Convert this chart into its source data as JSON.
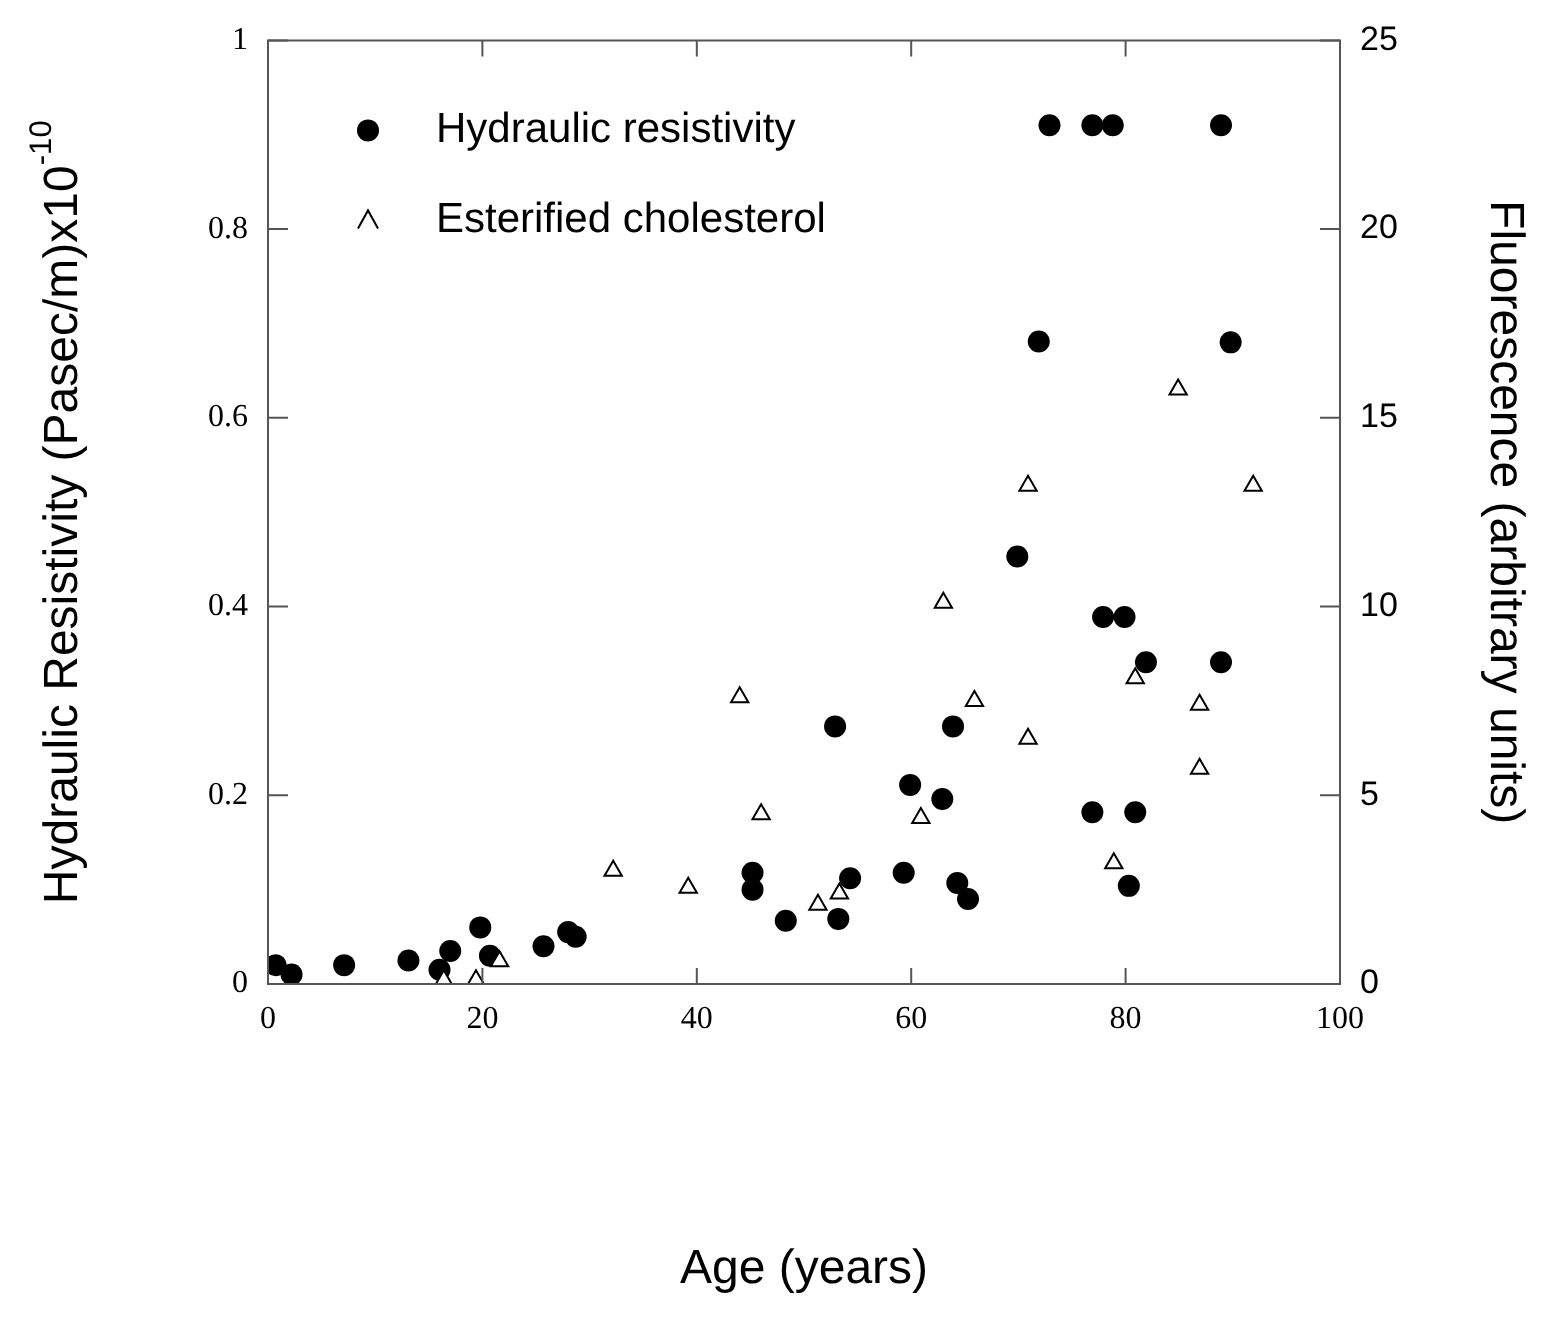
{
  "chart_data": {
    "type": "scatter",
    "xlabel": "Age (years)",
    "ylabel": "Hydraulic Resistivity (Pasec/m)x10$^{-10}$",
    "y2label": "Fluorescence (arbitrary units)",
    "xlim": [
      0,
      100
    ],
    "xticks": [
      0,
      20,
      40,
      60,
      80,
      100
    ],
    "ylim": [
      0,
      1
    ],
    "yticks": [
      0,
      0.2,
      0.4,
      0.6,
      0.8,
      1
    ],
    "y2lim": [
      0,
      25
    ],
    "y2ticks": [
      0,
      5,
      10,
      15,
      20,
      25
    ],
    "legend": "top left",
    "series": [
      {
        "name": "Hydraulic resistivity",
        "color": "#000000",
        "marker": "circle",
        "axis": "y",
        "x": [
          0.7,
          2.2,
          7.1,
          13.1,
          16.0,
          17.0,
          19.8,
          20.7,
          25.7,
          28.0,
          28.7,
          45.2,
          45.2,
          48.3,
          53.2,
          54.3,
          59.3,
          59.9,
          62.9,
          63.9,
          64.3,
          65.3,
          52.9,
          69.9,
          71.9,
          72.9,
          76.9,
          76.9,
          77.9,
          78.8,
          79.9,
          80.3,
          80.9,
          81.9,
          88.9,
          88.9,
          89.8
        ],
        "values": [
          0.02,
          0.01,
          0.02,
          0.025,
          0.015,
          0.035,
          0.06,
          0.03,
          0.04,
          0.055,
          0.05,
          0.118,
          0.1,
          0.067,
          0.069,
          0.112,
          0.118,
          0.211,
          0.196,
          0.273,
          0.107,
          0.09,
          0.273,
          0.453,
          0.681,
          0.91,
          0.91,
          0.182,
          0.389,
          0.91,
          0.389,
          0.104,
          0.182,
          0.341,
          0.91,
          0.341,
          0.68
        ]
      },
      {
        "name": "Esterified cholesterol",
        "color": "#000000",
        "marker": "triangle",
        "axis": "y2",
        "x": [
          16.4,
          19.4,
          21.6,
          32.2,
          39.2,
          44.0,
          46.0,
          51.3,
          53.3,
          60.9,
          63.0,
          65.9,
          70.9,
          70.9,
          78.9,
          80.9,
          84.9,
          86.9,
          86.9,
          91.9
        ],
        "values": [
          0.1,
          0.1,
          0.6,
          3.0,
          2.55,
          7.6,
          4.5,
          2.1,
          2.4,
          4.4,
          10.1,
          7.5,
          6.5,
          13.2,
          3.2,
          8.1,
          15.75,
          7.4,
          5.7,
          13.2
        ]
      }
    ]
  }
}
